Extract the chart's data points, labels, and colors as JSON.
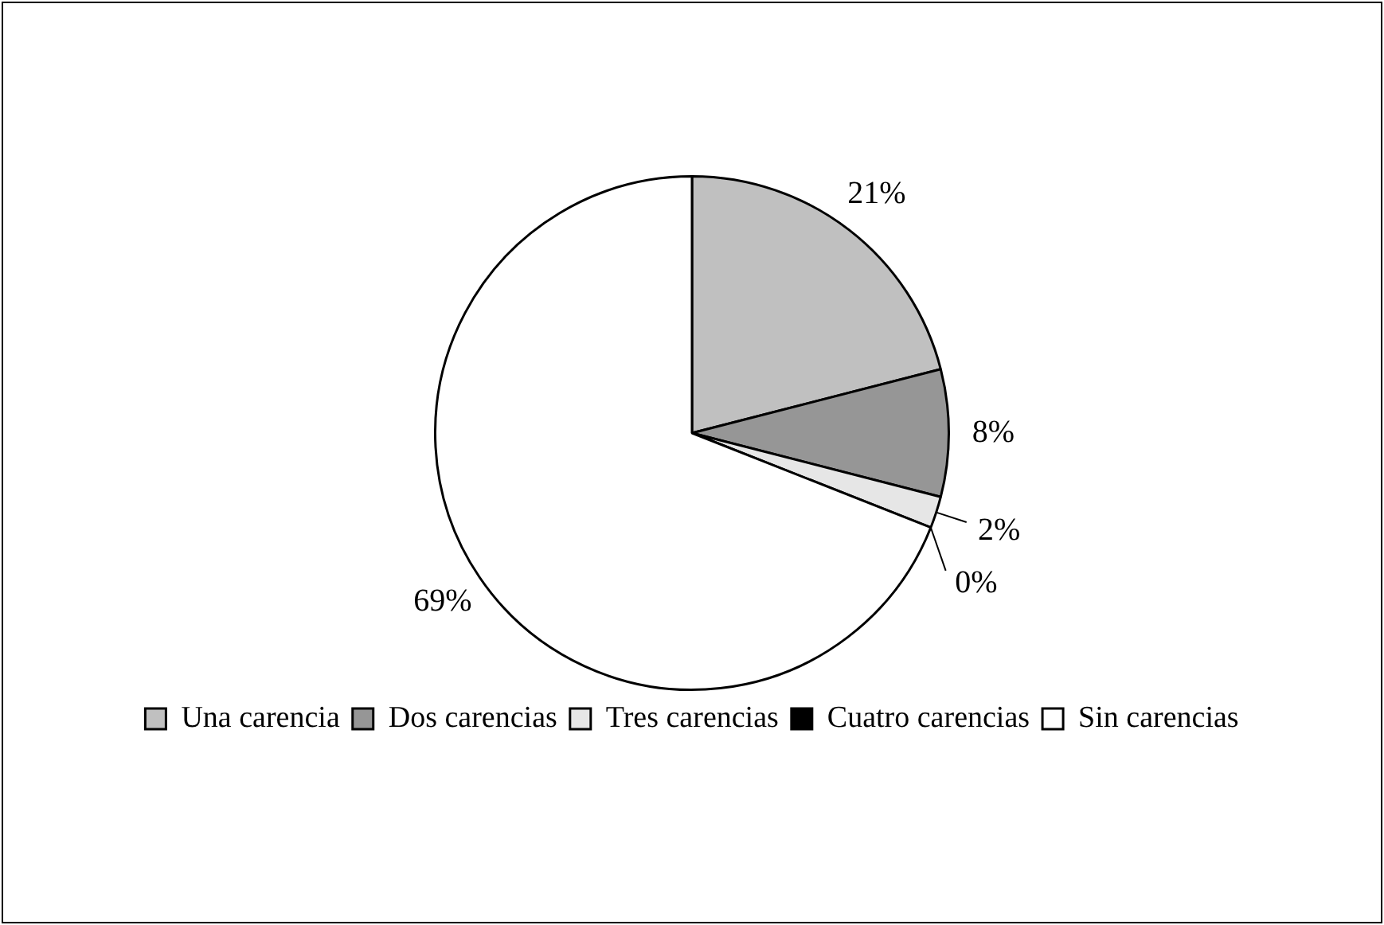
{
  "chart_data": {
    "type": "pie",
    "categories": [
      "Una carencia",
      "Dos carencias",
      "Tres carencias",
      "Cuatro carencias",
      "Sin carencias"
    ],
    "values": [
      21,
      8,
      2,
      0,
      69
    ],
    "colors": [
      "#c0c0c0",
      "#969696",
      "#e6e6e6",
      "#000000",
      "#ffffff"
    ],
    "value_labels": [
      "21%",
      "8%",
      "2%",
      "0%",
      "69%"
    ],
    "legend": "bottom"
  }
}
